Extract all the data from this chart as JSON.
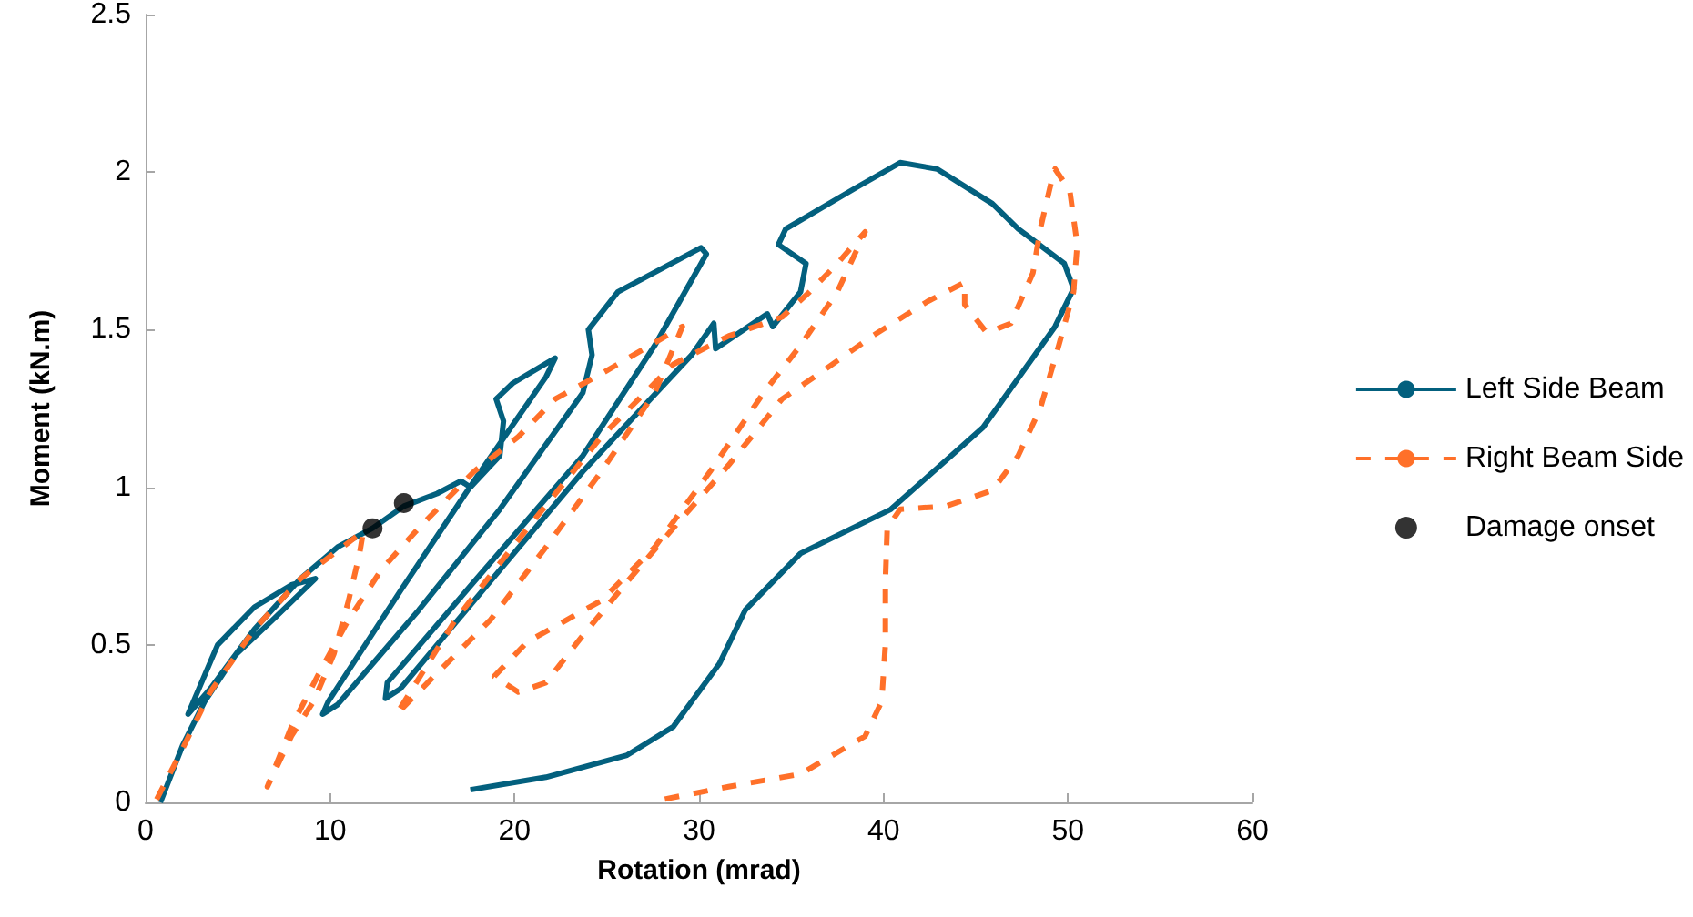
{
  "chart_data": {
    "type": "line",
    "xlabel": "Rotation (mrad)",
    "ylabel": "Moment (kN.m)",
    "xlim": [
      0,
      60
    ],
    "xticks": [
      0,
      10,
      20,
      30,
      40,
      50,
      60
    ],
    "ylim": [
      0,
      2.5
    ],
    "yticks": [
      0,
      0.5,
      1,
      1.5,
      2,
      2.5
    ],
    "grid": false,
    "legend": "right",
    "marker": "none",
    "series": [
      {
        "name": "Left Side Beam",
        "color": "#03607e",
        "line_style": "solid",
        "x": [
          0.8,
          2.0,
          3.2,
          4.9,
          6.9,
          9.2,
          7.9,
          5.9,
          3.9,
          2.3,
          3.5,
          5.9,
          8.4,
          10.4,
          12.3,
          14.0,
          15.8,
          17.1,
          17.6,
          19.2,
          19.4,
          19.0,
          19.9,
          22.2,
          21.7,
          17.8,
          13.8,
          9.9,
          9.6,
          10.4,
          14.8,
          19.2,
          23.7,
          24.2,
          24.0,
          25.6,
          30.1,
          30.4,
          27.6,
          23.7,
          17.8,
          13.1,
          13.0,
          13.8,
          17.8,
          23.7,
          29.6,
          30.8,
          30.9,
          33.7,
          34.0,
          35.5,
          35.8,
          34.3,
          34.7,
          38.5,
          40.9,
          42.9,
          45.9,
          47.3,
          49.8,
          50.3,
          49.3,
          45.4,
          40.4,
          35.5,
          32.5,
          31.1,
          28.6,
          26.1,
          21.7,
          17.6
        ],
        "values": [
          0,
          0.18,
          0.32,
          0.47,
          0.58,
          0.71,
          0.69,
          0.62,
          0.5,
          0.28,
          0.36,
          0.55,
          0.71,
          0.81,
          0.87,
          0.94,
          0.98,
          1.02,
          1.0,
          1.1,
          1.21,
          1.28,
          1.33,
          1.41,
          1.35,
          1.02,
          0.67,
          0.32,
          0.28,
          0.31,
          0.61,
          0.93,
          1.3,
          1.42,
          1.5,
          1.62,
          1.76,
          1.74,
          1.45,
          1.1,
          0.7,
          0.38,
          0.33,
          0.36,
          0.64,
          1.05,
          1.42,
          1.52,
          1.44,
          1.55,
          1.51,
          1.62,
          1.71,
          1.77,
          1.82,
          1.95,
          2.03,
          2.01,
          1.9,
          1.82,
          1.71,
          1.63,
          1.51,
          1.19,
          0.93,
          0.79,
          0.61,
          0.44,
          0.24,
          0.15,
          0.08,
          0.04
        ]
      },
      {
        "name": "Right Beam Side",
        "color": "#ff7029",
        "line_style": "dashed",
        "x": [
          0.6,
          2.0,
          3.5,
          5.9,
          8.4,
          11.8,
          11.6,
          11.0,
          10.2,
          9.1,
          7.9,
          6.6,
          7.9,
          9.4,
          11.0,
          12.8,
          14.8,
          17.8,
          20.2,
          22.2,
          24.7,
          29.1,
          27.6,
          24.7,
          21.7,
          18.7,
          15.8,
          13.6,
          16.8,
          20.7,
          24.7,
          28.6,
          31.6,
          34.5,
          36.0,
          37.5,
          39.0,
          37.5,
          35.5,
          33.5,
          30.6,
          27.6,
          24.7,
          20.7,
          18.9,
          20.2,
          21.7,
          23.7,
          26.1,
          28.6,
          31.6,
          34.5,
          36.5,
          39.4,
          42.4,
          44.4,
          44.4,
          45.6,
          46.9,
          48.1,
          48.5,
          49.1,
          49.3,
          50.1,
          50.5,
          50.3,
          49.5,
          48.5,
          47.3,
          45.9,
          43.4,
          40.9,
          40.2,
          40.1,
          40.1,
          39.9,
          39.0,
          35.5,
          31.6,
          28.1
        ],
        "values": [
          0.01,
          0.17,
          0.35,
          0.55,
          0.71,
          0.86,
          0.79,
          0.64,
          0.47,
          0.32,
          0.21,
          0.05,
          0.24,
          0.41,
          0.58,
          0.74,
          0.87,
          1.05,
          1.16,
          1.28,
          1.36,
          1.51,
          1.3,
          1.05,
          0.81,
          0.58,
          0.41,
          0.28,
          0.58,
          0.87,
          1.16,
          1.39,
          1.48,
          1.54,
          1.62,
          1.71,
          1.81,
          1.62,
          1.45,
          1.3,
          1.05,
          0.81,
          0.64,
          0.51,
          0.4,
          0.35,
          0.38,
          0.53,
          0.7,
          0.87,
          1.07,
          1.28,
          1.36,
          1.48,
          1.59,
          1.65,
          1.58,
          1.49,
          1.52,
          1.68,
          1.82,
          1.97,
          2.01,
          1.94,
          1.77,
          1.62,
          1.45,
          1.25,
          1.1,
          0.99,
          0.94,
          0.93,
          0.87,
          0.7,
          0.5,
          0.32,
          0.21,
          0.09,
          0.05,
          0.01
        ]
      },
      {
        "name": "Damage onset",
        "type": "scatter",
        "color": "#000000",
        "marker": "circle",
        "x": [
          12.3,
          14.0
        ],
        "values": [
          0.87,
          0.95
        ]
      }
    ]
  }
}
